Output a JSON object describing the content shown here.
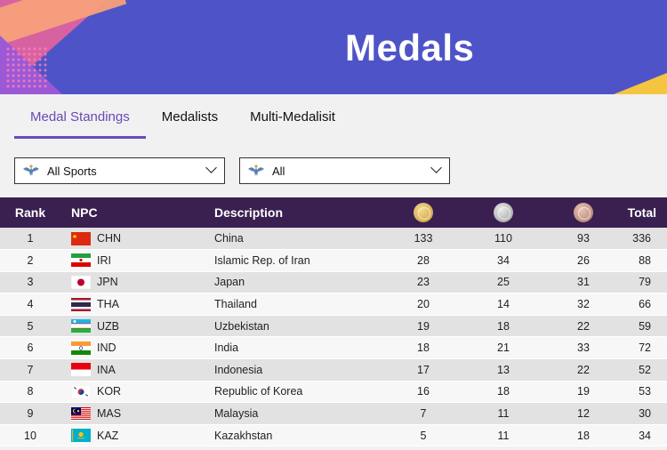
{
  "banner": {
    "title": "Medals"
  },
  "tabs": [
    {
      "label": "Medal Standings",
      "active": true
    },
    {
      "label": "Medalists",
      "active": false
    },
    {
      "label": "Multi-Medalisit",
      "active": false
    }
  ],
  "filters": {
    "sports": {
      "value": "All Sports",
      "icon": "games-logo-icon"
    },
    "category": {
      "value": "All",
      "icon": "games-logo-icon"
    }
  },
  "table": {
    "headers": {
      "rank": "Rank",
      "npc": "NPC",
      "description": "Description",
      "gold": "gold-medal-icon",
      "silver": "silver-medal-icon",
      "bronze": "bronze-medal-icon",
      "total": "Total"
    },
    "rows": [
      {
        "rank": "1",
        "code": "CHN",
        "name": "China",
        "gold": "133",
        "silver": "110",
        "bronze": "93",
        "total": "336"
      },
      {
        "rank": "2",
        "code": "IRI",
        "name": "Islamic Rep. of Iran",
        "gold": "28",
        "silver": "34",
        "bronze": "26",
        "total": "88"
      },
      {
        "rank": "3",
        "code": "JPN",
        "name": "Japan",
        "gold": "23",
        "silver": "25",
        "bronze": "31",
        "total": "79"
      },
      {
        "rank": "4",
        "code": "THA",
        "name": "Thailand",
        "gold": "20",
        "silver": "14",
        "bronze": "32",
        "total": "66"
      },
      {
        "rank": "5",
        "code": "UZB",
        "name": "Uzbekistan",
        "gold": "19",
        "silver": "18",
        "bronze": "22",
        "total": "59"
      },
      {
        "rank": "6",
        "code": "IND",
        "name": "India",
        "gold": "18",
        "silver": "21",
        "bronze": "33",
        "total": "72"
      },
      {
        "rank": "7",
        "code": "INA",
        "name": "Indonesia",
        "gold": "17",
        "silver": "13",
        "bronze": "22",
        "total": "52"
      },
      {
        "rank": "8",
        "code": "KOR",
        "name": "Republic of Korea",
        "gold": "16",
        "silver": "18",
        "bronze": "19",
        "total": "53"
      },
      {
        "rank": "9",
        "code": "MAS",
        "name": "Malaysia",
        "gold": "7",
        "silver": "11",
        "bronze": "12",
        "total": "30"
      },
      {
        "rank": "10",
        "code": "KAZ",
        "name": "Kazakhstan",
        "gold": "5",
        "silver": "11",
        "bronze": "18",
        "total": "34"
      }
    ]
  },
  "colors": {
    "banner": "#4e54c8",
    "header_row": "#3a2050",
    "active_tab": "#6a4ab6"
  }
}
